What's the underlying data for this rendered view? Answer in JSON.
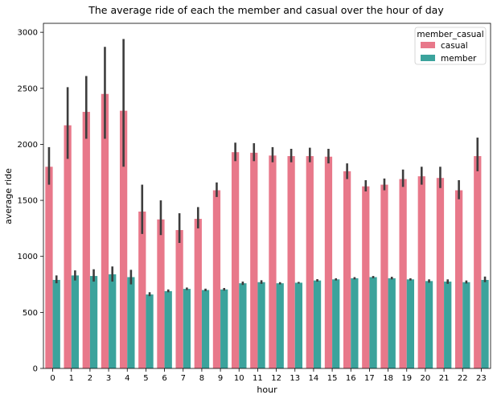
{
  "chart_data": {
    "type": "bar",
    "title": "The average ride of each the member and casual over the hour of day",
    "xlabel": "hour",
    "ylabel": "average ride",
    "ylim": [
      0,
      3080
    ],
    "yticks": [
      0,
      500,
      1000,
      1500,
      2000,
      2500,
      3000
    ],
    "categories": [
      "0",
      "1",
      "2",
      "3",
      "4",
      "5",
      "6",
      "7",
      "8",
      "9",
      "10",
      "11",
      "12",
      "13",
      "14",
      "15",
      "16",
      "17",
      "18",
      "19",
      "20",
      "21",
      "22",
      "23"
    ],
    "legend": {
      "title": "member_casual",
      "placement": "top-right"
    },
    "series": [
      {
        "name": "casual",
        "color": "#e8788a",
        "values": [
          1800,
          2170,
          2290,
          2450,
          2300,
          1400,
          1330,
          1235,
          1335,
          1590,
          1930,
          1925,
          1900,
          1895,
          1895,
          1890,
          1760,
          1625,
          1640,
          1690,
          1715,
          1700,
          1590,
          1895
        ],
        "err_low": [
          1640,
          1870,
          2050,
          2050,
          1800,
          1200,
          1190,
          1120,
          1250,
          1530,
          1850,
          1850,
          1840,
          1840,
          1840,
          1830,
          1690,
          1580,
          1590,
          1620,
          1640,
          1610,
          1510,
          1760
        ],
        "err_high": [
          1975,
          2510,
          2610,
          2870,
          2940,
          1640,
          1500,
          1385,
          1440,
          1660,
          2015,
          2010,
          1975,
          1960,
          1970,
          1960,
          1830,
          1680,
          1695,
          1775,
          1800,
          1800,
          1680,
          2060
        ]
      },
      {
        "name": "member",
        "color": "#3ba39c",
        "values": [
          790,
          830,
          825,
          840,
          815,
          660,
          690,
          710,
          700,
          705,
          760,
          770,
          760,
          765,
          785,
          795,
          805,
          815,
          805,
          795,
          780,
          775,
          770,
          790
        ],
        "err_low": [
          760,
          785,
          775,
          775,
          750,
          645,
          680,
          700,
          690,
          695,
          745,
          755,
          750,
          758,
          775,
          785,
          795,
          805,
          795,
          785,
          765,
          755,
          758,
          770
        ],
        "err_high": [
          830,
          875,
          885,
          910,
          880,
          680,
          705,
          722,
          712,
          718,
          775,
          787,
          770,
          772,
          797,
          805,
          815,
          825,
          818,
          805,
          795,
          795,
          785,
          820
        ]
      }
    ]
  }
}
